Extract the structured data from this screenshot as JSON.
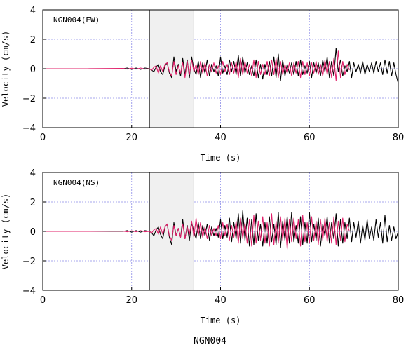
{
  "figure_caption": "NGN004",
  "chart_data": [
    {
      "type": "line",
      "title": "NGN004(EW)",
      "xlabel": "Time (s)",
      "ylabel": "Velocity (cm/s)",
      "xlim": [
        0,
        80
      ],
      "ylim": [
        -4,
        4
      ],
      "xticks": [
        0,
        20,
        40,
        60,
        80
      ],
      "yticks": [
        -4,
        -2,
        0,
        2,
        4
      ],
      "grid": true,
      "highlight_window": [
        24,
        34
      ],
      "series": [
        {
          "color": "#000000",
          "x": [
            0,
            10,
            18,
            19,
            20,
            21,
            22,
            23,
            24,
            24.5,
            25,
            25.5,
            26,
            26.5,
            27,
            27.5,
            28,
            28.5,
            29,
            29.5,
            30,
            30.5,
            31,
            31.5,
            32,
            32.5,
            33,
            33.5,
            34,
            34.5,
            35,
            35.5,
            36,
            36.5,
            37,
            37.5,
            38,
            38.5,
            39,
            39.5,
            40,
            40.5,
            41,
            41.5,
            42,
            42.5,
            43,
            43.5,
            44,
            44.5,
            45,
            45.5,
            46,
            46.5,
            47,
            47.5,
            48,
            48.5,
            49,
            49.5,
            50,
            50.5,
            51,
            51.5,
            52,
            52.5,
            53,
            53.5,
            54,
            54.5,
            55,
            55.5,
            56,
            56.5,
            57,
            57.5,
            58,
            58.5,
            59,
            59.5,
            60,
            60.5,
            61,
            61.5,
            62,
            62.5,
            63,
            63.5,
            64,
            64.5,
            65,
            65.5,
            66,
            66.5,
            67,
            67.5,
            68,
            68.5,
            69,
            69.5,
            70,
            70.5,
            71,
            71.5,
            72,
            72.5,
            73,
            73.5,
            74,
            74.5,
            75,
            75.5,
            76,
            76.5,
            77,
            77.5,
            78,
            78.5,
            79,
            79.5,
            80
          ],
          "y": [
            0,
            0,
            0,
            0.05,
            -0.05,
            0.05,
            -0.05,
            0.05,
            0,
            -0.1,
            -0.2,
            0.1,
            0.3,
            -0.2,
            -0.4,
            0.2,
            0.4,
            -0.3,
            -0.6,
            0.8,
            -0.2,
            0.3,
            -0.5,
            0.7,
            -0.4,
            0.6,
            -0.6,
            0.8,
            0,
            -0.4,
            0.5,
            -0.6,
            0.4,
            -0.3,
            0.6,
            -0.5,
            0.3,
            -0.2,
            0.2,
            -0.5,
            0.8,
            -0.3,
            0.2,
            -0.4,
            0.6,
            -0.2,
            0.5,
            -0.4,
            0.9,
            -0.5,
            0.8,
            -0.3,
            0.4,
            -0.4,
            0.2,
            -0.5,
            0.6,
            -0.6,
            0.3,
            -0.7,
            0.3,
            -0.4,
            0.5,
            -0.5,
            0.8,
            -0.6,
            1,
            -0.8,
            0.6,
            -0.5,
            0.3,
            -0.3,
            0.4,
            -0.4,
            0.5,
            -0.5,
            0.6,
            -0.4,
            0.2,
            -0.3,
            0.5,
            -0.6,
            0.4,
            -0.3,
            0.4,
            -0.5,
            0.6,
            -0.2,
            0.8,
            -0.6,
            0.5,
            -0.5,
            1.4,
            -0.2,
            0.6,
            -0.5,
            0.2,
            -0.2,
            0.5,
            -0.6,
            0.4,
            -0.2,
            0.3,
            -0.3,
            0.5,
            -0.4,
            0.3,
            -0.2,
            0.4,
            -0.3,
            0.5,
            -0.2,
            0.4,
            -0.4,
            0.6,
            -0.3,
            0.5,
            -0.5,
            0.4,
            -0.4,
            -1
          ]
        },
        {
          "color": "#e0206a",
          "x": [
            0,
            10,
            18,
            19,
            20,
            21,
            22,
            23,
            24,
            24.5,
            25,
            25.5,
            26,
            26.5,
            27,
            27.5,
            28,
            28.5,
            29,
            29.5,
            30,
            30.5,
            31,
            31.5,
            32,
            32.5,
            33,
            33.5,
            34,
            34.5,
            35,
            35.5,
            36,
            36.5,
            37,
            37.5,
            38,
            38.5,
            39,
            39.5,
            40,
            40.5,
            41,
            41.5,
            42,
            42.5,
            43,
            43.5,
            44,
            44.5,
            45,
            45.5,
            46,
            46.5,
            47,
            47.5,
            48,
            48.5,
            49,
            49.5,
            50,
            50.5,
            51,
            51.5,
            52,
            52.5,
            53,
            53.5,
            54,
            54.5,
            55,
            55.5,
            56,
            56.5,
            57,
            57.5,
            58,
            58.5,
            59,
            59.5,
            60,
            60.5,
            61,
            61.5,
            62,
            62.5,
            63,
            63.5,
            64,
            64.5,
            65,
            65.5,
            66,
            66.5,
            67,
            67.5,
            68,
            68.5,
            69
          ],
          "y": [
            0,
            0,
            0.02,
            -0.03,
            0.04,
            -0.03,
            0.05,
            -0.03,
            0,
            -0.1,
            0.1,
            0.2,
            -0.3,
            0.2,
            -0.2,
            0.3,
            0.4,
            -0.2,
            -0.5,
            0.5,
            -0.4,
            0.2,
            -0.3,
            0.4,
            -0.6,
            0.5,
            -0.4,
            0.6,
            -0.2,
            0.3,
            -0.4,
            0.5,
            -0.3,
            0.4,
            -0.5,
            0.3,
            -0.2,
            0.4,
            -0.3,
            0.2,
            -0.4,
            0.5,
            -0.2,
            0.3,
            -0.4,
            0.4,
            -0.3,
            0.5,
            -0.6,
            0.7,
            -0.4,
            0.5,
            -0.3,
            0.3,
            -0.5,
            0.6,
            -0.6,
            0.5,
            -0.4,
            0.3,
            -0.4,
            0.5,
            -0.5,
            0.6,
            -0.4,
            0.7,
            -0.6,
            0.5,
            -0.4,
            0.3,
            -0.3,
            0.4,
            -0.5,
            0.4,
            -0.3,
            0.5,
            -0.6,
            0.5,
            -0.4,
            0.4,
            -0.5,
            0.4,
            -0.3,
            0.5,
            -0.4,
            0.3,
            -0.5,
            0.6,
            -0.4,
            0.5,
            -0.6,
            0.7,
            -0.8,
            1.2,
            -0.6,
            0.5,
            -0.4,
            0.3,
            -0.1
          ]
        }
      ]
    },
    {
      "type": "line",
      "title": "NGN004(NS)",
      "xlabel": "Time (s)",
      "ylabel": "Velocity (cm/s)",
      "xlim": [
        0,
        80
      ],
      "ylim": [
        -4,
        4
      ],
      "xticks": [
        0,
        20,
        40,
        60,
        80
      ],
      "yticks": [
        -4,
        -2,
        0,
        2,
        4
      ],
      "grid": true,
      "highlight_window": [
        24,
        34
      ],
      "series": [
        {
          "color": "#000000",
          "x": [
            0,
            10,
            18,
            19,
            20,
            21,
            22,
            23,
            24,
            24.5,
            25,
            25.5,
            26,
            26.5,
            27,
            27.5,
            28,
            28.5,
            29,
            29.5,
            30,
            30.5,
            31,
            31.5,
            32,
            32.5,
            33,
            33.5,
            34,
            34.5,
            35,
            35.5,
            36,
            36.5,
            37,
            37.5,
            38,
            38.5,
            39,
            39.5,
            40,
            40.5,
            41,
            41.5,
            42,
            42.5,
            43,
            43.5,
            44,
            44.5,
            45,
            45.5,
            46,
            46.5,
            47,
            47.5,
            48,
            48.5,
            49,
            49.5,
            50,
            50.5,
            51,
            51.5,
            52,
            52.5,
            53,
            53.5,
            54,
            54.5,
            55,
            55.5,
            56,
            56.5,
            57,
            57.5,
            58,
            58.5,
            59,
            59.5,
            60,
            60.5,
            61,
            61.5,
            62,
            62.5,
            63,
            63.5,
            64,
            64.5,
            65,
            65.5,
            66,
            66.5,
            67,
            67.5,
            68,
            68.5,
            69,
            69.5,
            70,
            70.5,
            71,
            71.5,
            72,
            72.5,
            73,
            73.5,
            74,
            74.5,
            75,
            75.5,
            76,
            76.5,
            77,
            77.5,
            78,
            78.5,
            79,
            79.5,
            80
          ],
          "y": [
            0,
            0,
            0,
            0.05,
            -0.05,
            0.05,
            -0.05,
            0.05,
            0,
            -0.1,
            -0.3,
            0.1,
            0.3,
            -0.2,
            -0.5,
            0.3,
            0.5,
            -0.4,
            -0.9,
            0.6,
            -0.3,
            0.2,
            -0.4,
            0.8,
            -0.5,
            0.4,
            -0.6,
            0.6,
            0,
            -0.5,
            0.6,
            -0.5,
            0.4,
            -0.3,
            0.5,
            -0.6,
            0.3,
            -0.3,
            0.2,
            -0.4,
            0.8,
            -0.5,
            0.4,
            -0.4,
            0.9,
            -0.7,
            0.6,
            -0.5,
            1.2,
            -0.8,
            1.4,
            -0.6,
            0.9,
            -1,
            0.8,
            -0.9,
            1.2,
            -0.6,
            0.5,
            -1,
            0.6,
            -0.8,
            1,
            -0.7,
            0.5,
            -0.9,
            1.3,
            -1.1,
            0.7,
            -0.6,
            1,
            -0.8,
            1.3,
            -0.7,
            0.4,
            -0.8,
            1,
            -0.9,
            0.6,
            -0.8,
            1.3,
            -0.7,
            0.5,
            -0.6,
            0.9,
            -1,
            0.5,
            -0.3,
            1,
            -0.8,
            0.6,
            -0.5,
            1.2,
            -1,
            0.8,
            -0.8,
            0.6,
            -0.5,
            0.9,
            -0.7,
            0.6,
            -0.4,
            0.7,
            -0.8,
            0.4,
            -0.6,
            0.8,
            -0.5,
            0.3,
            -0.6,
            0.8,
            -0.4,
            0.6,
            -0.8,
            1.1,
            -0.7,
            0.4,
            -0.6,
            0.3,
            -0.5,
            0
          ]
        },
        {
          "color": "#e0206a",
          "x": [
            0,
            10,
            18,
            19,
            20,
            21,
            22,
            23,
            24,
            24.5,
            25,
            25.5,
            26,
            26.5,
            27,
            27.5,
            28,
            28.5,
            29,
            29.5,
            30,
            30.5,
            31,
            31.5,
            32,
            32.5,
            33,
            33.5,
            34,
            34.5,
            35,
            35.5,
            36,
            36.5,
            37,
            37.5,
            38,
            38.5,
            39,
            39.5,
            40,
            40.5,
            41,
            41.5,
            42,
            42.5,
            43,
            43.5,
            44,
            44.5,
            45,
            45.5,
            46,
            46.5,
            47,
            47.5,
            48,
            48.5,
            49,
            49.5,
            50,
            50.5,
            51,
            51.5,
            52,
            52.5,
            53,
            53.5,
            54,
            54.5,
            55,
            55.5,
            56,
            56.5,
            57,
            57.5,
            58,
            58.5,
            59,
            59.5,
            60,
            60.5,
            61,
            61.5,
            62,
            62.5,
            63,
            63.5,
            64,
            64.5,
            65,
            65.5,
            66,
            66.5,
            67,
            67.5,
            68,
            68.5,
            69
          ],
          "y": [
            0,
            0,
            0.02,
            -0.03,
            0.04,
            -0.03,
            0.05,
            -0.03,
            0,
            -0.1,
            0.1,
            0.2,
            -0.2,
            0.3,
            -0.2,
            0.3,
            0.5,
            -0.3,
            -0.6,
            0.4,
            -0.3,
            0.2,
            -0.4,
            0.5,
            -0.5,
            0.3,
            -0.2,
            0.7,
            -0.4,
            0.9,
            -0.3,
            0.6,
            -0.4,
            0.3,
            -0.5,
            0.4,
            -0.3,
            0.2,
            -0.3,
            0.4,
            -0.5,
            0.6,
            -0.3,
            0.5,
            -0.6,
            0.4,
            -0.4,
            0.7,
            -0.8,
            0.9,
            -0.5,
            0.6,
            -0.8,
            0.8,
            -1,
            1.1,
            -0.8,
            0.7,
            -0.6,
            1,
            -0.8,
            0.6,
            -1,
            1.2,
            -0.9,
            0.7,
            -0.8,
            1,
            -0.6,
            0.9,
            -1.2,
            0.8,
            -0.7,
            0.9,
            -0.5,
            0.8,
            -1,
            1.1,
            -0.7,
            0.6,
            -0.8,
            1,
            -0.6,
            0.7,
            -0.9,
            0.8,
            -0.6,
            0.9,
            -0.7,
            0.6,
            -0.8,
            1,
            -0.9,
            0.7,
            -0.6,
            0.9,
            -0.7,
            0.5,
            0
          ]
        }
      ]
    }
  ]
}
